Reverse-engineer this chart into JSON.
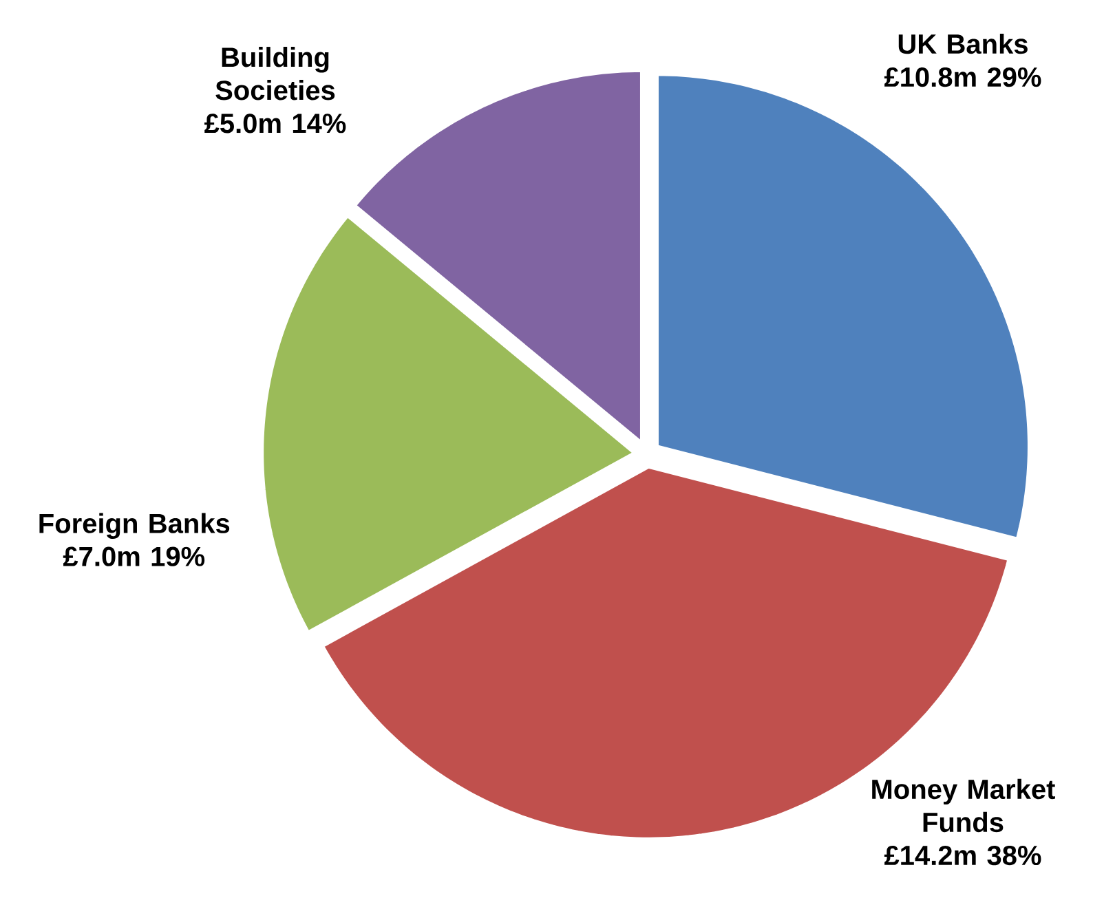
{
  "chart_data": {
    "type": "pie",
    "categories": [
      "UK Banks £10.8m",
      "Money Market Funds £14.2m",
      "Foreign Banks £7.0m",
      "Building Societies £5.0m"
    ],
    "values": [
      29,
      38,
      19,
      14
    ],
    "value_labels": [
      "29%",
      "38%",
      "19%",
      "14%"
    ],
    "colors": [
      "#4f81bd",
      "#c0504d",
      "#9bbb59",
      "#8064a2"
    ]
  }
}
